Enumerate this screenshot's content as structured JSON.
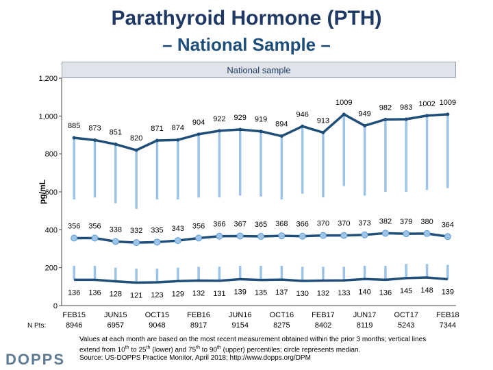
{
  "title": "Parathyroid Hormone (PTH)",
  "subtitle": "– National Sample –",
  "panel_label": "National sample",
  "npts_label": "N Pts:",
  "chart_data": {
    "type": "line",
    "ylabel": "pg/mL",
    "ylim": [
      0,
      1200
    ],
    "yticks": [
      0,
      200,
      400,
      600,
      800,
      1000,
      1200
    ],
    "ytick_labels": [
      "0",
      "200",
      "400",
      "600",
      "800",
      "1,000",
      "1,200"
    ],
    "x_labels": [
      {
        "month": "FEB15",
        "npts": "8946",
        "index": 0
      },
      {
        "month": "JUN15",
        "npts": "6957",
        "index": 2
      },
      {
        "month": "OCT15",
        "npts": "9048",
        "index": 4
      },
      {
        "month": "FEB16",
        "npts": "8917",
        "index": 6
      },
      {
        "month": "JUN16",
        "npts": "9154",
        "index": 8
      },
      {
        "month": "OCT16",
        "npts": "8275",
        "index": 10
      },
      {
        "month": "FEB17",
        "npts": "8402",
        "index": 12
      },
      {
        "month": "JUN17",
        "npts": "8119",
        "index": 14
      },
      {
        "month": "OCT17",
        "npts": "5243",
        "index": 16
      },
      {
        "month": "FEB18",
        "npts": "7344",
        "index": 18
      }
    ],
    "series": [
      {
        "name": "90th percentile",
        "color": "#1f4e79",
        "values": [
          885,
          873,
          851,
          820,
          871,
          874,
          904,
          922,
          929,
          919,
          894,
          946,
          913,
          1009,
          949,
          982,
          983,
          1002,
          1009
        ]
      },
      {
        "name": "Median",
        "color": "#1f4e79",
        "values": [
          356,
          356,
          338,
          332,
          335,
          343,
          356,
          366,
          367,
          365,
          368,
          366,
          370,
          370,
          373,
          382,
          379,
          380,
          364
        ]
      },
      {
        "name": "10th percentile",
        "color": "#1f4e79",
        "values": [
          136,
          136,
          128,
          121,
          123,
          129,
          132,
          131,
          139,
          135,
          137,
          130,
          132,
          133,
          140,
          136,
          145,
          148,
          139
        ]
      }
    ],
    "whiskers": {
      "color": "#9dc3e6",
      "upper_from": [
        885,
        873,
        851,
        820,
        871,
        874,
        904,
        922,
        929,
        919,
        894,
        946,
        913,
        1009,
        949,
        982,
        983,
        1002,
        1009
      ],
      "upper_to": [
        560,
        570,
        540,
        510,
        560,
        560,
        570,
        570,
        580,
        575,
        560,
        590,
        570,
        630,
        580,
        600,
        600,
        610,
        620
      ],
      "lower_from": [
        210,
        210,
        200,
        195,
        195,
        200,
        205,
        205,
        210,
        210,
        210,
        205,
        205,
        205,
        210,
        210,
        220,
        220,
        215
      ],
      "lower_to": [
        136,
        136,
        128,
        121,
        123,
        129,
        132,
        131,
        139,
        135,
        137,
        130,
        132,
        133,
        140,
        136,
        145,
        148,
        139
      ]
    }
  },
  "footnote": {
    "line1": "Values at each month are based on the most recent measurement obtained within the prior 3 months; vertical lines",
    "line2a": "extend from 10",
    "line2b": "th",
    "line2c": " to 25",
    "line2d": "th",
    "line2e": " (lower) and 75",
    "line2f": "th",
    "line2g": " to 90",
    "line2h": "th",
    "line2i": " (upper) percentiles; circle represents median.",
    "line3": "Source: US-DOPPS Practice Monitor, April 2018; http://www.dopps.org/DPM"
  },
  "logo": "DOPPS"
}
